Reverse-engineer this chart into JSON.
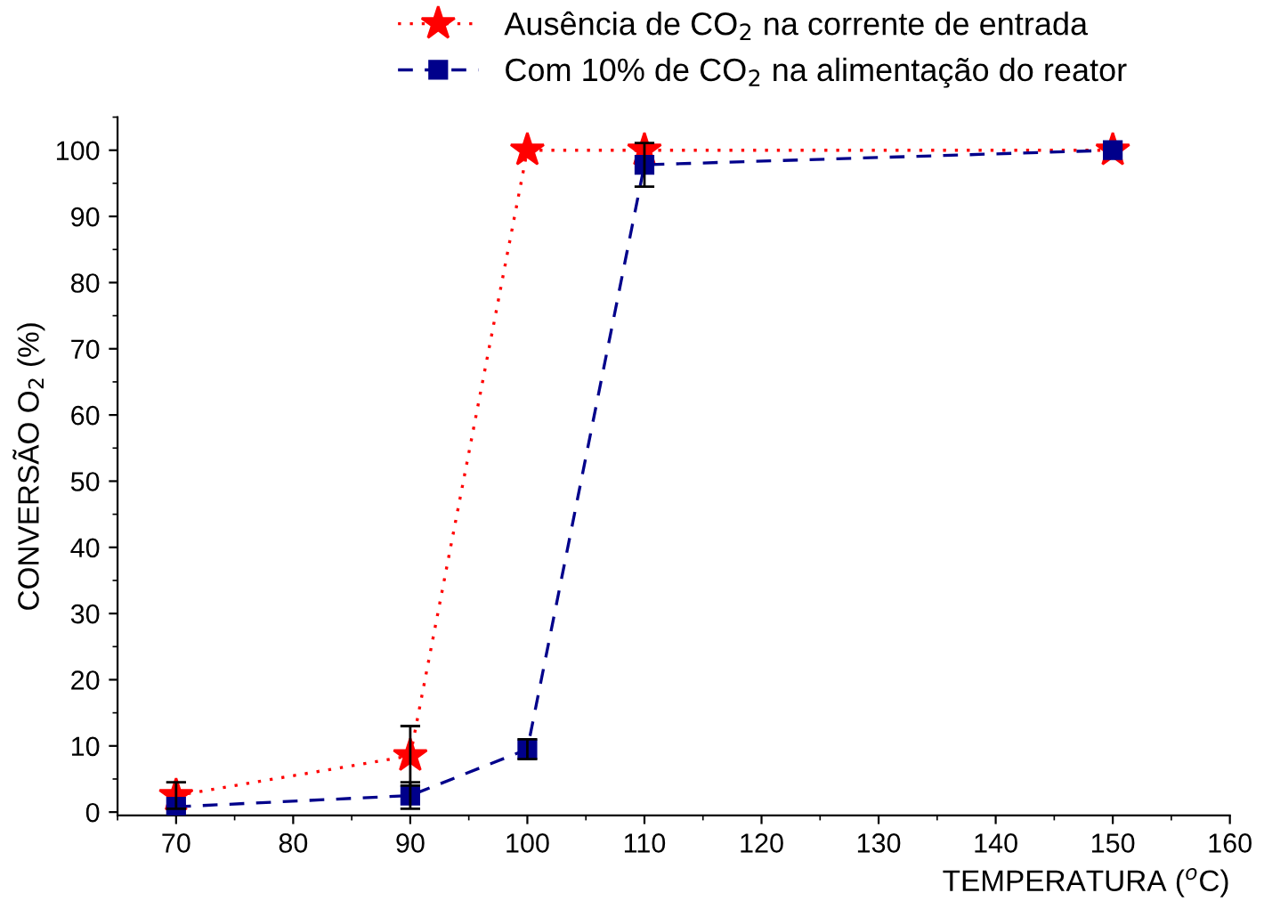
{
  "chart_data": {
    "type": "line",
    "xlabel": "TEMPERATURA ($^{o}$C)",
    "ylabel": "CONVERSÃO O$_{2}$ (%)",
    "x": [
      70,
      90,
      100,
      110,
      150
    ],
    "series": [
      {
        "name": "Ausência de CO$_{2}$ na corrente de entrada",
        "color": "#ff0000",
        "marker": "star",
        "line_style": "dotted",
        "values": [
          2.5,
          8.5,
          100,
          100,
          100
        ],
        "errors": [
          2,
          4.5,
          null,
          null,
          null
        ]
      },
      {
        "name": "Com 10% de CO$_{2}$ na alimentação do reator",
        "color": "#00008b",
        "marker": "square",
        "line_style": "dashed",
        "values": [
          0.8,
          2.5,
          9.5,
          97.8,
          100
        ],
        "errors": [
          null,
          2,
          1.5,
          3.3,
          null
        ]
      }
    ],
    "xlim": [
      65,
      160
    ],
    "xticks": [
      70,
      80,
      90,
      100,
      110,
      120,
      130,
      140,
      150,
      160
    ],
    "ylim": [
      -0.5,
      105
    ],
    "yticks": [
      0,
      10,
      20,
      30,
      40,
      50,
      60,
      70,
      80,
      90,
      100
    ],
    "grid": false,
    "legend": "top"
  }
}
